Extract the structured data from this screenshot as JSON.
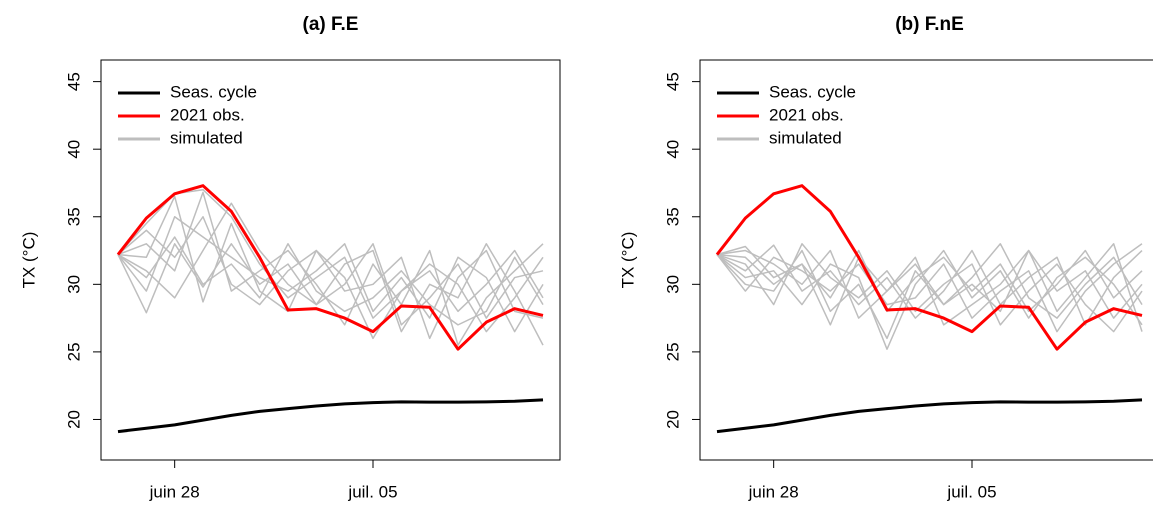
{
  "chart_data": [
    {
      "type": "line",
      "title": "(a) F.E",
      "y_label": "TX (°C)",
      "x": [
        "06-26",
        "06-27",
        "06-28",
        "06-29",
        "06-30",
        "07-01",
        "07-02",
        "07-03",
        "07-04",
        "07-05",
        "07-06",
        "07-07",
        "07-08",
        "07-09",
        "07-10",
        "07-11"
      ],
      "xticks": [
        {
          "value": "06-28",
          "label": "juin 28"
        },
        {
          "value": "07-05",
          "label": "juil. 05"
        }
      ],
      "ylim": [
        17,
        46.6
      ],
      "yticks": [
        20,
        25,
        30,
        35,
        40,
        45
      ],
      "legend": "top-left",
      "series": [
        {
          "name": "simulated",
          "color": "#bebebe",
          "members": [
            [
              32.2,
              34.5,
              36.7,
              37.0,
              35.0,
              31.5,
              29.0,
              30.5,
              32.0,
              27.5,
              29.5,
              31.0,
              28.0,
              30.0,
              32.5,
              29.0
            ],
            [
              32.2,
              27.9,
              33.0,
              29.8,
              33.0,
              30.0,
              31.5,
              28.5,
              30.0,
              33.0,
              27.0,
              29.0,
              31.5,
              27.5,
              30.5,
              31.0
            ],
            [
              32.2,
              32.0,
              36.5,
              28.7,
              34.5,
              29.5,
              28.0,
              32.5,
              29.5,
              30.0,
              32.0,
              26.0,
              30.5,
              32.5,
              28.0,
              27.5
            ],
            [
              32.2,
              33.0,
              31.0,
              36.8,
              29.5,
              31.0,
              32.5,
              30.0,
              27.0,
              31.5,
              28.5,
              32.5,
              25.5,
              29.0,
              31.0,
              33.0
            ],
            [
              32.2,
              29.5,
              35.0,
              33.5,
              32.0,
              30.5,
              29.5,
              31.0,
              33.0,
              28.0,
              30.5,
              27.5,
              32.0,
              30.5,
              26.5,
              30.0
            ],
            [
              32.2,
              31.0,
              29.0,
              32.5,
              36.0,
              32.5,
              30.0,
              28.5,
              31.5,
              32.5,
              26.5,
              30.0,
              29.0,
              33.0,
              29.5,
              25.5
            ],
            [
              32.2,
              30.5,
              33.5,
              30.0,
              31.5,
              29.0,
              33.0,
              29.5,
              28.0,
              29.0,
              31.0,
              28.5,
              27.0,
              28.0,
              32.0,
              28.5
            ],
            [
              32.2,
              34.0,
              32.0,
              35.0,
              30.0,
              28.5,
              31.0,
              32.5,
              30.5,
              26.0,
              29.5,
              31.5,
              30.0,
              26.5,
              29.0,
              32.0
            ]
          ]
        },
        {
          "name": "2021 obs.",
          "color": "#ff0000",
          "values": [
            32.2,
            34.9,
            36.7,
            37.3,
            35.4,
            32.0,
            28.1,
            28.2,
            27.5,
            26.5,
            28.4,
            28.3,
            25.2,
            27.2,
            28.2,
            27.7
          ]
        },
        {
          "name": "Seas. cycle",
          "color": "#000000",
          "values": [
            19.1,
            19.35,
            19.6,
            19.95,
            20.3,
            20.6,
            20.8,
            21.0,
            21.15,
            21.25,
            21.3,
            21.28,
            21.28,
            21.3,
            21.35,
            21.45
          ]
        }
      ]
    },
    {
      "type": "line",
      "title": "(b) F.nE",
      "y_label": "TX (°C)",
      "x": [
        "06-26",
        "06-27",
        "06-28",
        "06-29",
        "06-30",
        "07-01",
        "07-02",
        "07-03",
        "07-04",
        "07-05",
        "07-06",
        "07-07",
        "07-08",
        "07-09",
        "07-10",
        "07-11"
      ],
      "xticks": [
        {
          "value": "06-28",
          "label": "juin 28"
        },
        {
          "value": "07-05",
          "label": "juil. 05"
        }
      ],
      "ylim": [
        17,
        46.6
      ],
      "yticks": [
        20,
        25,
        30,
        35,
        40,
        45
      ],
      "legend": "top-left",
      "series": [
        {
          "name": "simulated",
          "color": "#bebebe",
          "members": [
            [
              32.2,
              32.8,
              30.5,
              31.5,
              29.0,
              32.5,
              28.0,
              30.5,
              32.0,
              29.5,
              31.5,
              28.0,
              30.0,
              32.5,
              29.0,
              31.0
            ],
            [
              32.2,
              31.0,
              32.9,
              29.5,
              31.0,
              28.5,
              30.5,
              27.5,
              29.5,
              32.5,
              28.5,
              30.5,
              32.0,
              27.0,
              30.5,
              32.5
            ],
            [
              32.2,
              30.0,
              29.5,
              32.5,
              28.0,
              30.0,
              26.0,
              31.0,
              28.5,
              30.5,
              33.0,
              29.0,
              27.5,
              30.0,
              32.0,
              28.5
            ],
            [
              32.2,
              32.5,
              31.5,
              30.0,
              32.5,
              27.5,
              29.5,
              32.0,
              27.0,
              28.5,
              30.0,
              32.5,
              29.5,
              31.0,
              27.5,
              30.0
            ],
            [
              32.2,
              29.5,
              32.0,
              31.0,
              29.5,
              31.5,
              28.5,
              29.0,
              31.5,
              27.5,
              29.5,
              31.0,
              26.5,
              29.5,
              31.5,
              33.0
            ],
            [
              32.2,
              31.5,
              28.5,
              33.0,
              30.5,
              29.0,
              31.0,
              28.0,
              30.0,
              31.5,
              27.0,
              29.5,
              31.5,
              28.5,
              26.5,
              29.5
            ],
            [
              32.2,
              30.5,
              31.0,
              28.5,
              31.5,
              30.5,
              25.2,
              30.0,
              32.5,
              29.0,
              31.0,
              27.5,
              30.5,
              32.0,
              30.0,
              27.0
            ],
            [
              32.2,
              32.0,
              30.0,
              31.5,
              27.0,
              32.0,
              29.5,
              31.5,
              28.5,
              30.0,
              28.0,
              32.5,
              28.0,
              30.5,
              33.0,
              26.5
            ]
          ]
        },
        {
          "name": "2021 obs.",
          "color": "#ff0000",
          "values": [
            32.2,
            34.9,
            36.7,
            37.3,
            35.4,
            32.0,
            28.1,
            28.2,
            27.5,
            26.5,
            28.4,
            28.3,
            25.2,
            27.2,
            28.2,
            27.7
          ]
        },
        {
          "name": "Seas. cycle",
          "color": "#000000",
          "values": [
            19.1,
            19.35,
            19.6,
            19.95,
            20.3,
            20.6,
            20.8,
            21.0,
            21.15,
            21.25,
            21.3,
            21.28,
            21.28,
            21.3,
            21.35,
            21.45
          ]
        }
      ]
    }
  ]
}
